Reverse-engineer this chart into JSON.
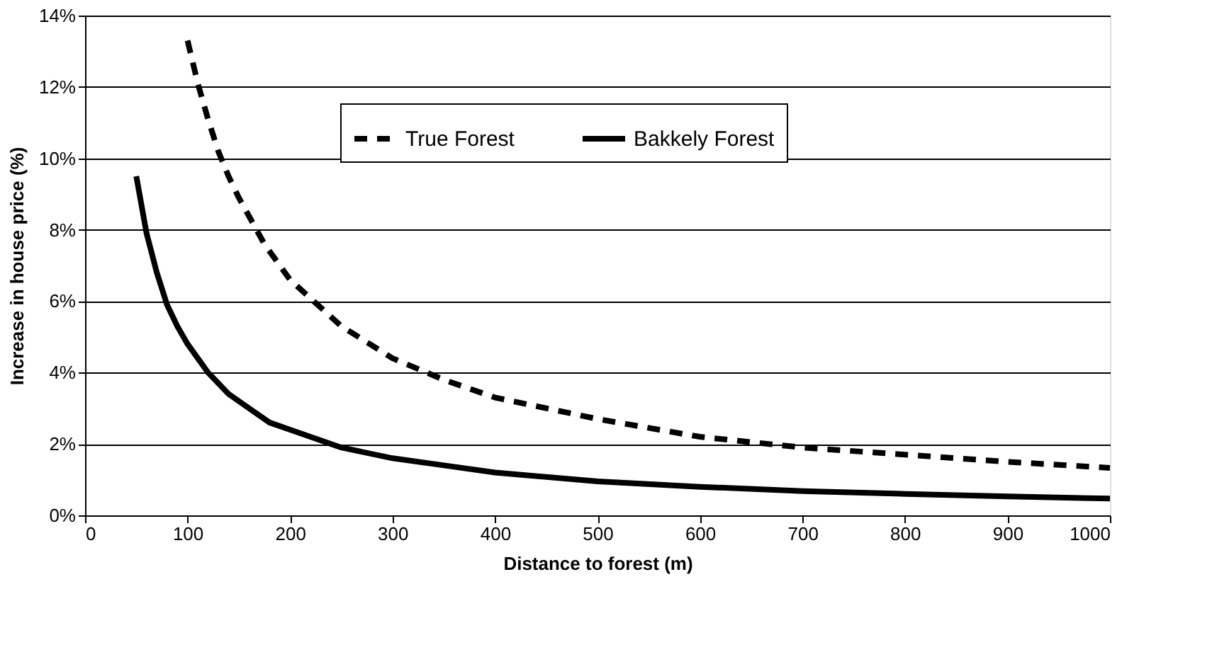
{
  "chart_data": {
    "type": "line",
    "xlabel": "Distance to forest (m)",
    "ylabel": "Increase in house price (%)",
    "xlim": [
      0,
      1000
    ],
    "xticks": [
      0,
      100,
      200,
      300,
      400,
      500,
      600,
      700,
      800,
      900,
      1000
    ],
    "ylim": [
      0,
      14
    ],
    "yticks": [
      {
        "value": 0,
        "label": "0%"
      },
      {
        "value": 2,
        "label": "2%"
      },
      {
        "value": 4,
        "label": "4%"
      },
      {
        "value": 6,
        "label": "6%"
      },
      {
        "value": 8,
        "label": "8%"
      },
      {
        "value": 10,
        "label": "10%"
      },
      {
        "value": 12,
        "label": "12%"
      },
      {
        "value": 14,
        "label": "14%"
      }
    ],
    "grid": "y",
    "legend": "top right",
    "marker": "none",
    "series": [
      {
        "name": "True Forest",
        "color": "#000000",
        "line_style": "dashed",
        "x": [
          100,
          110,
          120,
          130,
          140,
          150,
          175,
          200,
          250,
          300,
          350,
          400,
          500,
          600,
          700,
          800,
          900,
          1000
        ],
        "values": [
          13.3,
          12.1,
          11.1,
          10.2,
          9.5,
          8.9,
          7.6,
          6.6,
          5.3,
          4.4,
          3.8,
          3.3,
          2.7,
          2.2,
          1.9,
          1.7,
          1.5,
          1.33
        ]
      },
      {
        "name": "Bakkely Forest",
        "color": "#000000",
        "line_style": "solid",
        "x": [
          50,
          60,
          70,
          80,
          90,
          100,
          120,
          140,
          160,
          180,
          200,
          250,
          300,
          350,
          400,
          500,
          600,
          700,
          800,
          900,
          1000
        ],
        "values": [
          9.5,
          7.9,
          6.8,
          5.9,
          5.3,
          4.8,
          4.0,
          3.4,
          3.0,
          2.6,
          2.4,
          1.9,
          1.6,
          1.4,
          1.2,
          0.95,
          0.8,
          0.68,
          0.6,
          0.53,
          0.47
        ]
      }
    ]
  }
}
